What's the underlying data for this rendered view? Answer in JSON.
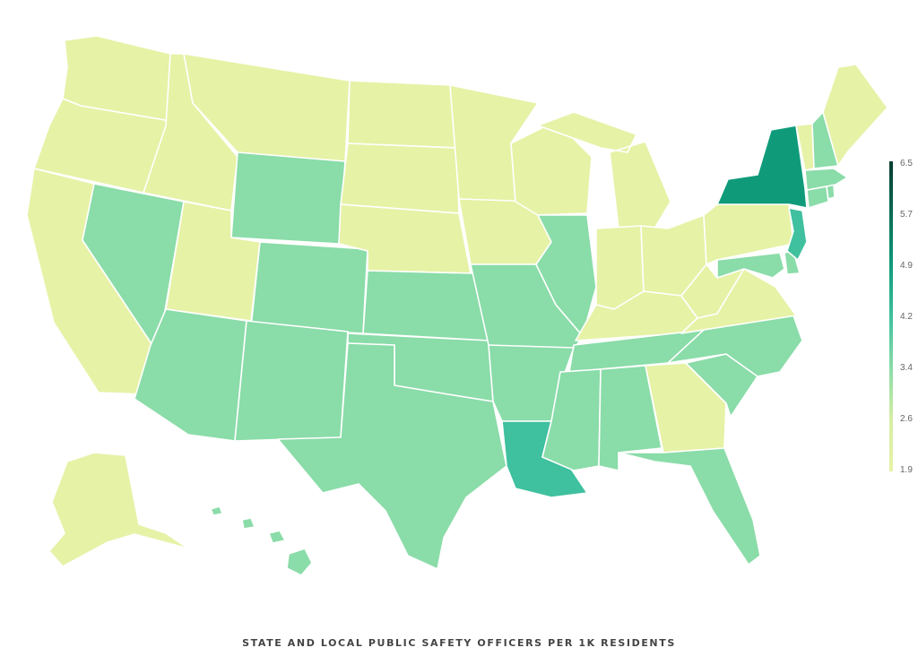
{
  "caption": "STATE AND LOCAL PUBLIC SAFETY OFFICERS PER 1K RESIDENTS",
  "legend": {
    "min": 1.9,
    "max": 6.5,
    "ticks": [
      "6.5",
      "5.7",
      "4.9",
      "4.2",
      "3.4",
      "2.6",
      "1.9"
    ],
    "colors": [
      "#e6f2a6",
      "#d6eea3",
      "#8adca8",
      "#3fc09e",
      "#0f9b7a",
      "#0b6b55",
      "#053d30"
    ]
  },
  "chart_data": {
    "type": "choropleth",
    "title": "",
    "scale_min": 1.9,
    "scale_max": 6.5,
    "classes": {
      "low": {
        "color": "#e6f2a6",
        "range": [
          1.9,
          2.6
        ]
      },
      "mid": {
        "color": "#8adca8",
        "range": [
          2.6,
          4.2
        ]
      },
      "high": {
        "color": "#3fc09e",
        "range": [
          4.2,
          4.9
        ]
      },
      "top": {
        "color": "#0f9b7a",
        "range": [
          4.9,
          5.7
        ]
      }
    },
    "states": {
      "WA": "low",
      "OR": "low",
      "CA": "low",
      "ID": "low",
      "MT": "low",
      "UT": "low",
      "ND": "low",
      "SD": "low",
      "NE": "low",
      "MN": "low",
      "IA": "low",
      "WI": "low",
      "MI": "low",
      "IN": "low",
      "OH": "low",
      "KY": "low",
      "WV": "low",
      "VA": "low",
      "PA": "low",
      "GA": "low",
      "ME": "low",
      "VT": "low",
      "AK": "low",
      "NV": "mid",
      "WY": "mid",
      "CO": "mid",
      "AZ": "mid",
      "NM": "mid",
      "KS": "mid",
      "OK": "mid",
      "TX": "mid",
      "MO": "mid",
      "AR": "mid",
      "IL": "mid",
      "TN": "mid",
      "MS": "mid",
      "AL": "mid",
      "FL": "mid",
      "SC": "mid",
      "NC": "mid",
      "MD": "mid",
      "DE": "mid",
      "CT": "mid",
      "MA": "mid",
      "RI": "mid",
      "NH": "mid",
      "HI": "mid",
      "LA": "high",
      "NJ": "high",
      "NY": "top"
    }
  }
}
